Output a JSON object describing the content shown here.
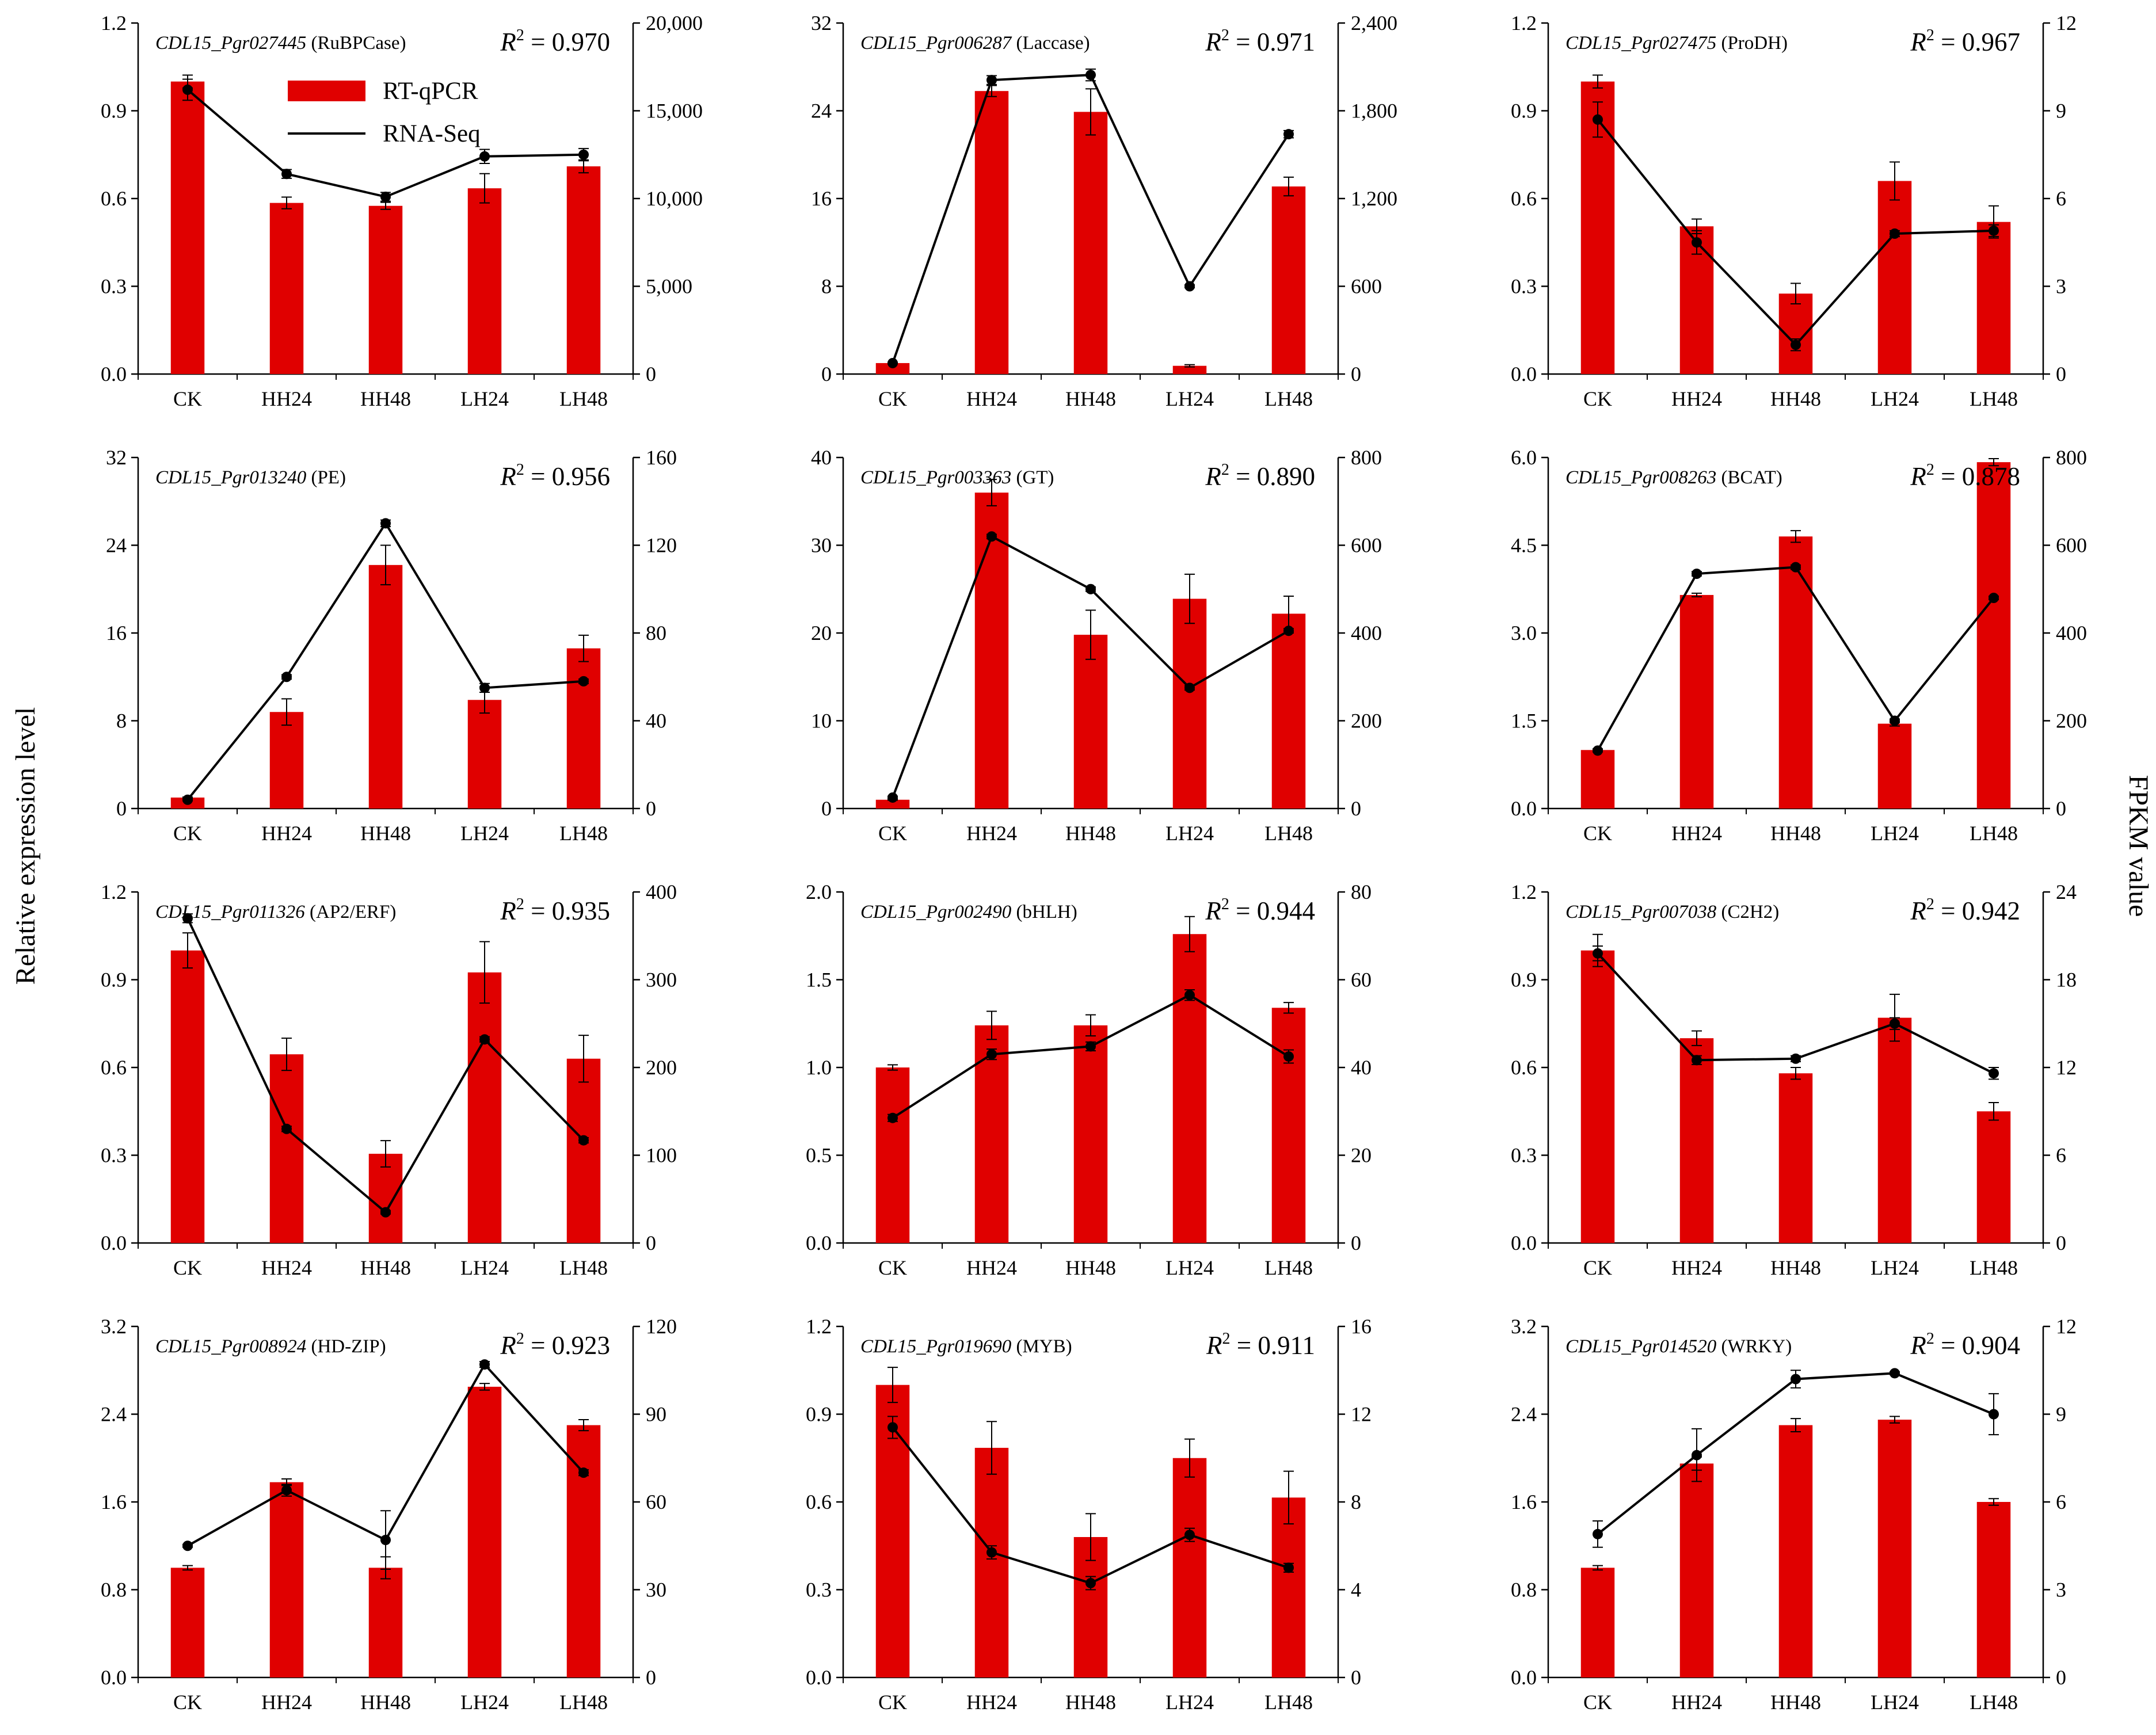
{
  "left_axis_label": "Relative expression level",
  "right_axis_label": "FPKM value",
  "legend": {
    "bar": "RT-qPCR",
    "line": "RNA-Seq"
  },
  "colors": {
    "bar": "#e00000",
    "line": "#000000"
  },
  "chart_data": [
    {
      "type": "bar+line",
      "gene_id": "CDL15_Pgr027445",
      "annotation": "(RuBPCase)",
      "r2": "0.970",
      "categories": [
        "CK",
        "HH24",
        "HH48",
        "LH24",
        "LH48"
      ],
      "left_ticks": [
        "0.0",
        "0.3",
        "0.6",
        "0.9",
        "1.2"
      ],
      "right_ticks": [
        "0",
        "5,000",
        "10,000",
        "15,000",
        "20,000"
      ],
      "left_max": 1.2,
      "right_max": 20000,
      "series": [
        {
          "name": "RT-qPCR",
          "axis": "left",
          "values": [
            1.0,
            0.585,
            0.575,
            0.635,
            0.71
          ],
          "errors": [
            0.022,
            0.02,
            0.012,
            0.05,
            0.022
          ]
        },
        {
          "name": "RNA-Seq",
          "axis": "right",
          "values": [
            16200,
            11400,
            10100,
            12400,
            12500
          ],
          "errors": [
            600,
            250,
            250,
            400,
            350
          ]
        }
      ]
    },
    {
      "type": "bar+line",
      "gene_id": "CDL15_Pgr006287",
      "annotation": "(Laccase)",
      "r2": "0.971",
      "categories": [
        "CK",
        "HH24",
        "HH48",
        "LH24",
        "LH48"
      ],
      "left_ticks": [
        "0",
        "8",
        "16",
        "24",
        "32"
      ],
      "right_ticks": [
        "0",
        "600",
        "1,200",
        "1,800",
        "2,400"
      ],
      "left_max": 32,
      "right_max": 2400,
      "series": [
        {
          "name": "RT-qPCR",
          "axis": "left",
          "values": [
            1.0,
            25.8,
            23.9,
            0.75,
            17.1
          ],
          "errors": [
            0.05,
            0.5,
            2.1,
            0.1,
            0.85
          ]
        },
        {
          "name": "RNA-Seq",
          "axis": "right",
          "values": [
            75,
            2010,
            2045,
            600,
            1640
          ],
          "errors": [
            5,
            30,
            40,
            10,
            25
          ]
        }
      ]
    },
    {
      "type": "bar+line",
      "gene_id": "CDL15_Pgr027475",
      "annotation": "(ProDH)",
      "r2": "0.967",
      "categories": [
        "CK",
        "HH24",
        "HH48",
        "LH24",
        "LH48"
      ],
      "left_ticks": [
        "0.0",
        "0.3",
        "0.6",
        "0.9",
        "1.2"
      ],
      "right_ticks": [
        "0",
        "3",
        "6",
        "9",
        "12"
      ],
      "left_max": 1.2,
      "right_max": 12,
      "series": [
        {
          "name": "RT-qPCR",
          "axis": "left",
          "values": [
            1.0,
            0.505,
            0.275,
            0.66,
            0.52
          ],
          "errors": [
            0.022,
            0.025,
            0.035,
            0.065,
            0.055
          ]
        },
        {
          "name": "RNA-Seq",
          "axis": "right",
          "values": [
            8.7,
            4.5,
            1.0,
            4.8,
            4.9
          ],
          "errors": [
            0.6,
            0.4,
            0.2,
            0.1,
            0.2
          ]
        }
      ]
    },
    {
      "type": "bar+line",
      "gene_id": "CDL15_Pgr013240",
      "annotation": "(PE)",
      "r2": "0.956",
      "categories": [
        "CK",
        "HH24",
        "HH48",
        "LH24",
        "LH48"
      ],
      "left_ticks": [
        "0",
        "8",
        "16",
        "24",
        "32"
      ],
      "right_ticks": [
        "0",
        "40",
        "80",
        "120",
        "160"
      ],
      "left_max": 32,
      "right_max": 160,
      "series": [
        {
          "name": "RT-qPCR",
          "axis": "left",
          "values": [
            1.0,
            8.8,
            22.2,
            9.9,
            14.6
          ],
          "errors": [
            0.05,
            1.2,
            1.8,
            1.2,
            1.2
          ]
        },
        {
          "name": "RNA-Seq",
          "axis": "right",
          "values": [
            4,
            60,
            130,
            55,
            58
          ],
          "errors": [
            0.5,
            1,
            1.5,
            2,
            1
          ]
        }
      ]
    },
    {
      "type": "bar+line",
      "gene_id": "CDL15_Pgr003363",
      "annotation": "(GT)",
      "r2": "0.890",
      "categories": [
        "CK",
        "HH24",
        "HH48",
        "LH24",
        "LH48"
      ],
      "left_ticks": [
        "0",
        "10",
        "20",
        "30",
        "40"
      ],
      "right_ticks": [
        "0",
        "200",
        "400",
        "600",
        "800"
      ],
      "left_max": 40,
      "right_max": 800,
      "series": [
        {
          "name": "RT-qPCR",
          "axis": "left",
          "values": [
            1.0,
            36.0,
            19.8,
            23.9,
            22.2
          ],
          "errors": [
            0.05,
            1.5,
            2.8,
            2.8,
            2.0
          ]
        },
        {
          "name": "RNA-Seq",
          "axis": "right",
          "values": [
            25,
            620,
            500,
            275,
            405
          ],
          "errors": [
            3,
            5,
            5,
            5,
            5
          ]
        }
      ]
    },
    {
      "type": "bar+line",
      "gene_id": "CDL15_Pgr008263",
      "annotation": "(BCAT)",
      "r2": "0.878",
      "categories": [
        "CK",
        "HH24",
        "HH48",
        "LH24",
        "LH48"
      ],
      "left_ticks": [
        "0.0",
        "1.5",
        "3.0",
        "4.5",
        "6.0"
      ],
      "right_ticks": [
        "0",
        "200",
        "400",
        "600",
        "800"
      ],
      "left_max": 6.0,
      "right_max": 800,
      "series": [
        {
          "name": "RT-qPCR",
          "axis": "left",
          "values": [
            1.0,
            3.65,
            4.65,
            1.45,
            5.92
          ],
          "errors": [
            0.02,
            0.03,
            0.1,
            0.04,
            0.06
          ]
        },
        {
          "name": "RNA-Seq",
          "axis": "right",
          "values": [
            132,
            535,
            550,
            200,
            480
          ],
          "errors": [
            3,
            5,
            5,
            4,
            4
          ]
        }
      ]
    },
    {
      "type": "bar+line",
      "gene_id": "CDL15_Pgr011326",
      "annotation": "(AP2/ERF)",
      "r2": "0.935",
      "categories": [
        "CK",
        "HH24",
        "HH48",
        "LH24",
        "LH48"
      ],
      "left_ticks": [
        "0.0",
        "0.3",
        "0.6",
        "0.9",
        "1.2"
      ],
      "right_ticks": [
        "0",
        "100",
        "200",
        "300",
        "400"
      ],
      "left_max": 1.2,
      "right_max": 400,
      "series": [
        {
          "name": "RT-qPCR",
          "axis": "left",
          "values": [
            1.0,
            0.645,
            0.305,
            0.925,
            0.63
          ],
          "errors": [
            0.06,
            0.055,
            0.045,
            0.105,
            0.08
          ]
        },
        {
          "name": "RNA-Seq",
          "axis": "right",
          "values": [
            370,
            130,
            35,
            232,
            117
          ],
          "errors": [
            5,
            3,
            2,
            3,
            3
          ]
        }
      ]
    },
    {
      "type": "bar+line",
      "gene_id": "CDL15_Pgr002490",
      "annotation": "(bHLH)",
      "r2": "0.944",
      "categories": [
        "CK",
        "HH24",
        "HH48",
        "LH24",
        "LH48"
      ],
      "left_ticks": [
        "0.0",
        "0.5",
        "1.0",
        "1.5",
        "2.0"
      ],
      "right_ticks": [
        "0",
        "20",
        "40",
        "60",
        "80"
      ],
      "left_max": 2.0,
      "right_max": 80,
      "series": [
        {
          "name": "RT-qPCR",
          "axis": "left",
          "values": [
            1.0,
            1.24,
            1.24,
            1.76,
            1.34
          ],
          "errors": [
            0.015,
            0.08,
            0.06,
            0.1,
            0.03
          ]
        },
        {
          "name": "RNA-Seq",
          "axis": "right",
          "values": [
            28.5,
            43,
            44.8,
            56.5,
            42.5
          ],
          "errors": [
            0.8,
            1.2,
            1,
            1.2,
            1.5
          ]
        }
      ]
    },
    {
      "type": "bar+line",
      "gene_id": "CDL15_Pgr007038",
      "annotation": "(C2H2)",
      "r2": "0.942",
      "categories": [
        "CK",
        "HH24",
        "HH48",
        "LH24",
        "LH48"
      ],
      "left_ticks": [
        "0.0",
        "0.3",
        "0.6",
        "0.9",
        "1.2"
      ],
      "right_ticks": [
        "0",
        "6",
        "12",
        "18",
        "24"
      ],
      "left_max": 1.2,
      "right_max": 24,
      "series": [
        {
          "name": "RT-qPCR",
          "axis": "left",
          "values": [
            1.0,
            0.7,
            0.58,
            0.77,
            0.45
          ],
          "errors": [
            0.055,
            0.025,
            0.02,
            0.08,
            0.03
          ]
        },
        {
          "name": "RNA-Seq",
          "axis": "right",
          "values": [
            19.8,
            12.5,
            12.6,
            15.0,
            11.6
          ],
          "errors": [
            0.5,
            0.3,
            0.2,
            0.4,
            0.4
          ]
        }
      ]
    },
    {
      "type": "bar+line",
      "gene_id": "CDL15_Pgr008924",
      "annotation": "(HD-ZIP)",
      "r2": "0.923",
      "categories": [
        "CK",
        "HH24",
        "HH48",
        "LH24",
        "LH48"
      ],
      "left_ticks": [
        "0.0",
        "0.8",
        "1.6",
        "2.4",
        "3.2"
      ],
      "right_ticks": [
        "0",
        "30",
        "60",
        "90",
        "120"
      ],
      "left_max": 3.2,
      "right_max": 120,
      "series": [
        {
          "name": "RT-qPCR",
          "axis": "left",
          "values": [
            1.0,
            1.78,
            1.0,
            2.65,
            2.3
          ],
          "errors": [
            0.02,
            0.03,
            0.1,
            0.03,
            0.05
          ]
        },
        {
          "name": "RNA-Seq",
          "axis": "right",
          "values": [
            45,
            64,
            47,
            107,
            70
          ],
          "errors": [
            0.5,
            2,
            10,
            1,
            1
          ]
        }
      ]
    },
    {
      "type": "bar+line",
      "gene_id": "CDL15_Pgr019690",
      "annotation": "(MYB)",
      "r2": "0.911",
      "categories": [
        "CK",
        "HH24",
        "HH48",
        "LH24",
        "LH48"
      ],
      "left_ticks": [
        "0.0",
        "0.3",
        "0.6",
        "0.9",
        "1.2"
      ],
      "right_ticks": [
        "0",
        "4",
        "8",
        "12",
        "16"
      ],
      "left_max": 1.2,
      "right_max": 16,
      "series": [
        {
          "name": "RT-qPCR",
          "axis": "left",
          "values": [
            1.0,
            0.785,
            0.48,
            0.75,
            0.615
          ],
          "errors": [
            0.06,
            0.09,
            0.08,
            0.065,
            0.09
          ]
        },
        {
          "name": "RNA-Seq",
          "axis": "right",
          "values": [
            11.4,
            5.7,
            4.3,
            6.5,
            5.0
          ],
          "errors": [
            0.5,
            0.3,
            0.3,
            0.3,
            0.2
          ]
        }
      ]
    },
    {
      "type": "bar+line",
      "gene_id": "CDL15_Pgr014520",
      "annotation": "(WRKY)",
      "r2": "0.904",
      "categories": [
        "CK",
        "HH24",
        "HH48",
        "LH24",
        "LH48"
      ],
      "left_ticks": [
        "0.0",
        "0.8",
        "1.6",
        "2.4",
        "3.2"
      ],
      "right_ticks": [
        "0",
        "3",
        "6",
        "9",
        "12"
      ],
      "left_max": 3.2,
      "right_max": 12,
      "series": [
        {
          "name": "RT-qPCR",
          "axis": "left",
          "values": [
            1.0,
            1.95,
            2.3,
            2.35,
            1.6
          ],
          "errors": [
            0.02,
            0.06,
            0.06,
            0.03,
            0.03
          ]
        },
        {
          "name": "RNA-Seq",
          "axis": "right",
          "values": [
            4.9,
            7.6,
            10.2,
            10.4,
            9.0
          ],
          "errors": [
            0.45,
            0.9,
            0.3,
            0.05,
            0.7
          ]
        }
      ]
    }
  ]
}
